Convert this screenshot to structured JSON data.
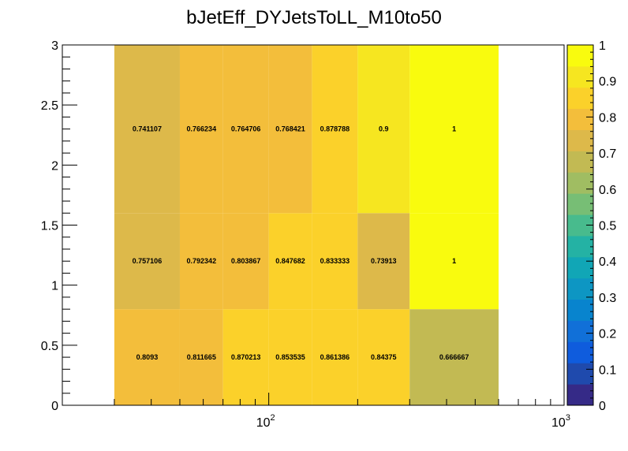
{
  "chart_data": {
    "type": "heatmap",
    "title": "bJetEff_DYJetsToLL_M10to50",
    "xlabel": "",
    "ylabel": "",
    "x_scale": "log",
    "xlim": [
      20,
      1000
    ],
    "ylim": [
      0,
      3
    ],
    "x_bin_edges": [
      30,
      50,
      70,
      100,
      140,
      200,
      300,
      600
    ],
    "y_bin_edges": [
      0,
      0.8,
      1.6,
      3
    ],
    "values": [
      [
        0.8093,
        0.811665,
        0.870213,
        0.853535,
        0.861386,
        0.84375,
        0.666667
      ],
      [
        0.757106,
        0.792342,
        0.803867,
        0.847682,
        0.833333,
        0.73913,
        1
      ],
      [
        0.741107,
        0.766234,
        0.764706,
        0.768421,
        0.878788,
        0.9,
        1
      ]
    ],
    "value_labels": [
      [
        "0.8093",
        "0.811665",
        "0.870213",
        "0.853535",
        "0.861386",
        "0.84375",
        "0.666667"
      ],
      [
        "0.757106",
        "0.792342",
        "0.803867",
        "0.847682",
        "0.833333",
        "0.73913",
        "1"
      ],
      [
        "0.741107",
        "0.766234",
        "0.764706",
        "0.768421",
        "0.878788",
        "0.9",
        "1"
      ]
    ],
    "z_range": [
      0,
      1
    ],
    "x_tick_labels": [
      {
        "value": 100,
        "base": "10",
        "exp": "2"
      },
      {
        "value": 1000,
        "base": "10",
        "exp": "3"
      }
    ],
    "y_ticks": [
      0,
      0.5,
      1,
      1.5,
      2,
      2.5,
      3
    ],
    "y_tick_labels": [
      "0",
      "0.5",
      "1",
      "1.5",
      "2",
      "2.5",
      "3"
    ],
    "z_ticks": [
      0,
      0.1,
      0.2,
      0.3,
      0.4,
      0.5,
      0.6,
      0.7,
      0.8,
      0.9,
      1
    ],
    "z_tick_labels": [
      "0",
      "0.1",
      "0.2",
      "0.3",
      "0.4",
      "0.5",
      "0.6",
      "0.7",
      "0.8",
      "0.9",
      "1"
    ],
    "palette": [
      "#352a87",
      "#1f4aad",
      "#0f5cdd",
      "#1170d8",
      "#0884ce",
      "#0d96c3",
      "#11a6b6",
      "#24b2a4",
      "#48bb8d",
      "#77be75",
      "#a0bd62",
      "#c2ba53",
      "#ddb94a",
      "#f3be3b",
      "#fbd12a",
      "#f6e620",
      "#f9fb0e"
    ],
    "grid": false,
    "legend": "colorbar-right"
  }
}
